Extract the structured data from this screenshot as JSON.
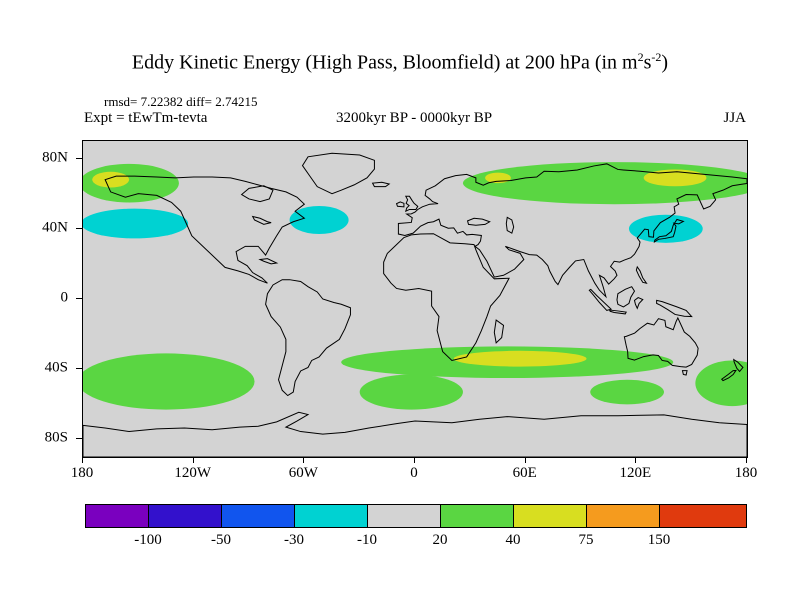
{
  "header": {
    "title_part1": "Eddy Kinetic Energy (High Pass, Bloomfield) at 200 hPa (in m",
    "title_sup1": "2",
    "title_part2": "s",
    "title_sup2": "-2",
    "title_part3": ")",
    "stats_line": "rmsd= 7.22382  diff= 2.74215",
    "experiment_label": "Expt = tEwTm-tevta",
    "period_label": "3200kyr BP - 0000kyr BP",
    "season_label": "JJA"
  },
  "map": {
    "background": "#d3d3d3",
    "coastline_color": "#000000"
  },
  "axes": {
    "x_ticks": [
      {
        "label": "180",
        "lon": -180
      },
      {
        "label": "120W",
        "lon": -120
      },
      {
        "label": "60W",
        "lon": -60
      },
      {
        "label": "0",
        "lon": 0
      },
      {
        "label": "60E",
        "lon": 60
      },
      {
        "label": "120E",
        "lon": 120
      },
      {
        "label": "180",
        "lon": 180
      }
    ],
    "y_ticks": [
      {
        "label": "80N",
        "lat": 80
      },
      {
        "label": "40N",
        "lat": 40
      },
      {
        "label": "0",
        "lat": 0
      },
      {
        "label": "40S",
        "lat": -40
      },
      {
        "label": "80S",
        "lat": -80
      }
    ]
  },
  "colorbar": {
    "labels": [
      "-100",
      "-50",
      "-30",
      "-10",
      "20",
      "40",
      "75",
      "150"
    ],
    "palette": [
      "#7a00bf",
      "#3311cc",
      "#1155ee",
      "#00d2d2",
      "#d3d3d3",
      "#5ad642",
      "#d8de20",
      "#f59b1e",
      "#e03a0e"
    ],
    "segment_widths": [
      63,
      73,
      73,
      73,
      73,
      73,
      73,
      73,
      86
    ]
  },
  "chart_data": {
    "type": "heatmap",
    "title": "Eddy Kinetic Energy (High Pass, Bloomfield) at 200 hPa (in m2 s-2)",
    "subtitle": "3200kyr BP - 0000kyr BP",
    "season": "JJA",
    "experiment": "tEwTm-tevta",
    "rmsd": 7.22382,
    "diff": 2.74215,
    "units": "m2 s-2",
    "pressure_level_hPa": 200,
    "projection": "equirectangular",
    "lon_range": [
      -180,
      180
    ],
    "lat_range": [
      -90,
      90
    ],
    "contour_levels": [
      -100,
      -50,
      -30,
      -10,
      20,
      40,
      75,
      150
    ],
    "background_band": "-10 to 20 (gray, near-zero difference)",
    "anomaly_regions": [
      {
        "name": "gulf-of-alaska",
        "value_band": "20 to 40",
        "palette_index": 5,
        "lon_center": -155,
        "lat_center": 66,
        "lon_radius": 27,
        "lat_radius": 11
      },
      {
        "name": "gulf-of-alaska-core",
        "value_band": "40 to 75",
        "palette_index": 6,
        "lon_center": -165,
        "lat_center": 68,
        "lon_radius": 10,
        "lat_radius": 4.5
      },
      {
        "name": "north-eurasia",
        "value_band": "20 to 40",
        "palette_index": 5,
        "lon_center": 108,
        "lat_center": 66,
        "lon_radius": 82,
        "lat_radius": 12
      },
      {
        "name": "east-siberia-core",
        "value_band": "40 to 75",
        "palette_index": 6,
        "lon_center": 141,
        "lat_center": 69,
        "lon_radius": 17,
        "lat_radius": 4.8
      },
      {
        "name": "west-russia-core",
        "value_band": "40 to 75",
        "palette_index": 6,
        "lon_center": 45,
        "lat_center": 69,
        "lon_radius": 7,
        "lat_radius": 3
      },
      {
        "name": "north-pacific",
        "value_band": "-30 to -10",
        "palette_index": 3,
        "lon_center": -152,
        "lat_center": 43,
        "lon_radius": 29,
        "lat_radius": 8.5
      },
      {
        "name": "north-atlantic",
        "value_band": "-30 to -10",
        "palette_index": 3,
        "lon_center": -52,
        "lat_center": 45,
        "lon_radius": 16,
        "lat_radius": 8
      },
      {
        "name": "japan-sea",
        "value_band": "-30 to -10",
        "palette_index": 3,
        "lon_center": 136,
        "lat_center": 40,
        "lon_radius": 20,
        "lat_radius": 8
      },
      {
        "name": "south-indian-band",
        "value_band": "20 to 40",
        "palette_index": 5,
        "lon_center": 50,
        "lat_center": -36,
        "lon_radius": 90,
        "lat_radius": 9
      },
      {
        "name": "south-atlantic-blob",
        "value_band": "20 to 40",
        "palette_index": 5,
        "lon_center": -2,
        "lat_center": -53,
        "lon_radius": 28,
        "lat_radius": 10
      },
      {
        "name": "south-indian-core",
        "value_band": "40 to 75",
        "palette_index": 6,
        "lon_center": 57,
        "lat_center": -34,
        "lon_radius": 36,
        "lat_radius": 4.5
      },
      {
        "name": "south-pacific",
        "value_band": "20 to 40",
        "palette_index": 5,
        "lon_center": -135,
        "lat_center": -47,
        "lon_radius": 48,
        "lat_radius": 16
      },
      {
        "name": "south-of-australia",
        "value_band": "20 to 40",
        "palette_index": 5,
        "lon_center": 115,
        "lat_center": -53,
        "lon_radius": 20,
        "lat_radius": 7
      },
      {
        "name": "new-zealand",
        "value_band": "20 to 40",
        "palette_index": 5,
        "lon_center": 172,
        "lat_center": -48,
        "lon_radius": 20,
        "lat_radius": 13
      }
    ]
  }
}
